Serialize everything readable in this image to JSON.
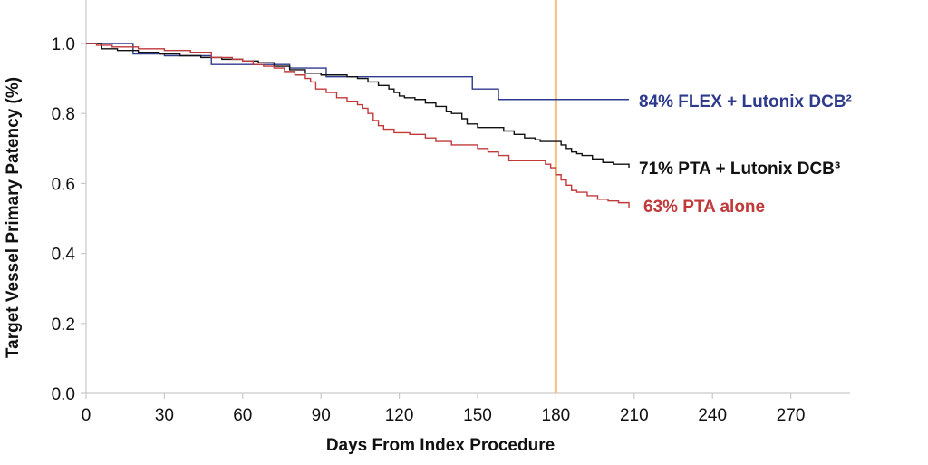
{
  "chart_data": {
    "type": "line",
    "title": "",
    "xlabel": "Days From Index Procedure",
    "ylabel": "Target Vessel Primary Patency (%)",
    "xlim": [
      0,
      290
    ],
    "ylim": [
      0,
      1.1
    ],
    "x_ticks": [
      0,
      30,
      60,
      90,
      120,
      150,
      180,
      210,
      240,
      270
    ],
    "y_ticks": [
      0.0,
      0.2,
      0.4,
      0.6,
      0.8,
      1.0
    ],
    "y_tick_labels": [
      "0.0",
      "0.2",
      "0.4",
      "0.6",
      "0.8",
      "1.0"
    ],
    "grid": false,
    "legend": "inline labels at right end of each series",
    "reference_line": {
      "x": 180,
      "color": "#f4c27f"
    },
    "series": [
      {
        "name": "84% FLEX + Lutonix DCB²",
        "color": "#2e3a8c",
        "step": true,
        "x": [
          0,
          18,
          30,
          48,
          78,
          92,
          148,
          158,
          208
        ],
        "y": [
          1.0,
          0.97,
          0.965,
          0.94,
          0.93,
          0.905,
          0.87,
          0.84,
          0.84
        ]
      },
      {
        "name": "71% PTA + Lutonix DCB³",
        "color": "#111111",
        "step": true,
        "x": [
          0,
          6,
          12,
          20,
          28,
          36,
          44,
          52,
          60,
          66,
          72,
          78,
          84,
          90,
          96,
          100,
          104,
          108,
          112,
          116,
          118,
          120,
          122,
          124,
          126,
          130,
          134,
          138,
          140,
          144,
          146,
          150,
          160,
          164,
          168,
          172,
          174,
          180,
          182,
          184,
          186,
          188,
          190,
          194,
          198,
          202,
          208
        ],
        "y": [
          1.0,
          0.985,
          0.98,
          0.975,
          0.97,
          0.965,
          0.96,
          0.955,
          0.95,
          0.945,
          0.935,
          0.925,
          0.915,
          0.91,
          0.91,
          0.905,
          0.9,
          0.89,
          0.88,
          0.87,
          0.86,
          0.85,
          0.845,
          0.845,
          0.84,
          0.83,
          0.82,
          0.805,
          0.8,
          0.785,
          0.77,
          0.76,
          0.75,
          0.74,
          0.73,
          0.725,
          0.72,
          0.72,
          0.71,
          0.7,
          0.69,
          0.685,
          0.68,
          0.67,
          0.66,
          0.655,
          0.645
        ]
      },
      {
        "name": "63% PTA alone",
        "color": "#c0393b",
        "step": true,
        "x": [
          0,
          4,
          10,
          20,
          30,
          40,
          48,
          56,
          60,
          64,
          68,
          72,
          76,
          80,
          84,
          86,
          88,
          92,
          96,
          100,
          104,
          106,
          108,
          110,
          112,
          114,
          118,
          124,
          130,
          134,
          140,
          150,
          154,
          158,
          162,
          176,
          178,
          180,
          182,
          184,
          186,
          188,
          192,
          196,
          200,
          204,
          208
        ],
        "y": [
          1.0,
          0.995,
          0.99,
          0.985,
          0.98,
          0.975,
          0.96,
          0.955,
          0.95,
          0.94,
          0.935,
          0.93,
          0.92,
          0.91,
          0.9,
          0.89,
          0.87,
          0.86,
          0.845,
          0.835,
          0.825,
          0.815,
          0.8,
          0.78,
          0.765,
          0.755,
          0.745,
          0.74,
          0.73,
          0.72,
          0.71,
          0.7,
          0.69,
          0.68,
          0.665,
          0.655,
          0.645,
          0.625,
          0.61,
          0.595,
          0.58,
          0.575,
          0.565,
          0.555,
          0.55,
          0.545,
          0.53
        ]
      }
    ]
  }
}
